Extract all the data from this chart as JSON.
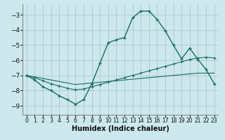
{
  "background_color": "#cce8ec",
  "grid_color": "#b0cdd2",
  "line_color": "#1a6b6b",
  "xlabel": "Humidex (Indice chaleur)",
  "ylim": [
    -9.6,
    -2.3
  ],
  "xlim": [
    -0.5,
    23.5
  ],
  "yticks": [
    -9,
    -8,
    -7,
    -6,
    -5,
    -4,
    -3
  ],
  "xticks": [
    0,
    1,
    2,
    3,
    4,
    5,
    6,
    7,
    8,
    9,
    10,
    11,
    12,
    13,
    14,
    15,
    16,
    17,
    18,
    19,
    20,
    21,
    22,
    23
  ],
  "curve1_x": [
    0,
    1,
    2,
    3,
    4,
    5,
    6,
    7,
    8,
    9,
    10,
    11,
    12,
    13,
    14,
    15,
    16,
    17,
    18,
    19,
    20,
    21,
    22,
    23
  ],
  "curve1_y": [
    -7.0,
    -7.3,
    -7.75,
    -8.0,
    -8.35,
    -8.6,
    -8.9,
    -8.6,
    -7.55,
    -6.2,
    -4.85,
    -4.65,
    -4.5,
    -3.2,
    -2.75,
    -2.75,
    -3.3,
    -4.05,
    -5.0,
    -5.9,
    -5.2,
    -5.95,
    -6.6,
    -7.55
  ],
  "curve2_x": [
    0,
    1,
    2,
    3,
    4,
    5,
    6,
    7,
    8,
    9,
    10,
    11,
    12,
    13,
    14,
    15,
    16,
    17,
    18,
    19,
    20,
    21,
    22,
    23
  ],
  "curve2_y": [
    -7.0,
    -7.15,
    -7.35,
    -7.55,
    -7.7,
    -7.85,
    -7.95,
    -7.9,
    -7.75,
    -7.6,
    -7.45,
    -7.3,
    -7.15,
    -7.0,
    -6.85,
    -6.7,
    -6.55,
    -6.4,
    -6.25,
    -6.1,
    -5.95,
    -5.85,
    -5.8,
    -5.85
  ],
  "curve3_x": [
    0,
    1,
    2,
    3,
    4,
    5,
    6,
    7,
    8,
    9,
    10,
    11,
    12,
    13,
    14,
    15,
    16,
    17,
    18,
    19,
    20,
    21,
    22,
    23
  ],
  "curve3_y": [
    -7.0,
    -7.1,
    -7.2,
    -7.3,
    -7.4,
    -7.5,
    -7.6,
    -7.55,
    -7.5,
    -7.45,
    -7.4,
    -7.35,
    -7.3,
    -7.25,
    -7.2,
    -7.15,
    -7.1,
    -7.05,
    -7.0,
    -6.95,
    -6.9,
    -6.85,
    -6.85,
    -6.85
  ]
}
